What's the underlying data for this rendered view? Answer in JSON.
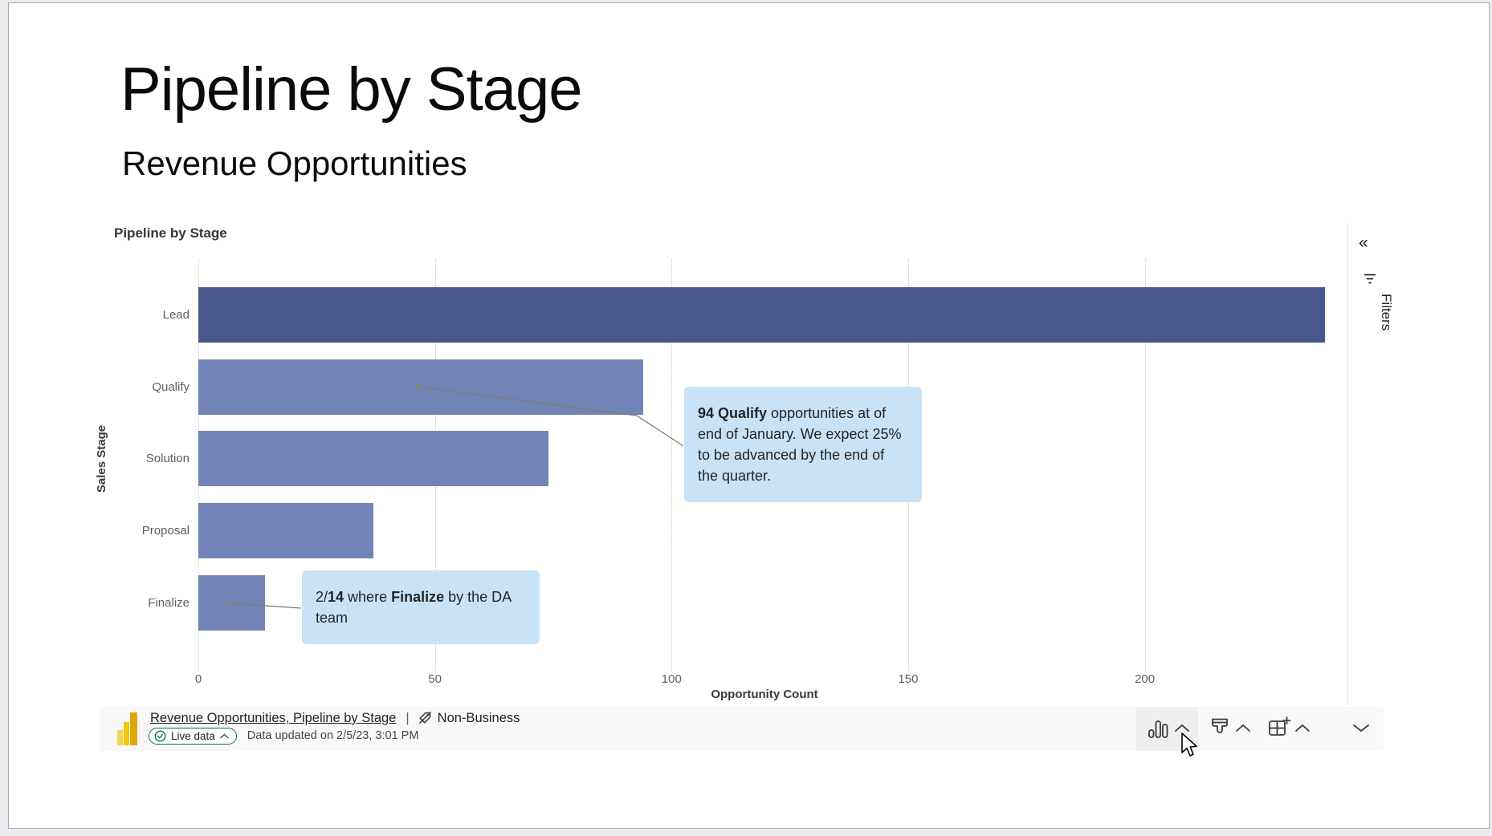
{
  "header": {
    "title": "Pipeline by Stage",
    "subtitle": "Revenue Opportunities"
  },
  "visual": {
    "title": "Pipeline by Stage"
  },
  "chart_data": {
    "type": "bar",
    "orientation": "horizontal",
    "title": "Pipeline by Stage",
    "categories": [
      "Lead",
      "Qualify",
      "Solution",
      "Proposal",
      "Finalize"
    ],
    "values": [
      238,
      94,
      74,
      37,
      14
    ],
    "xlabel": "Opportunity Count",
    "ylabel": "Sales Stage",
    "xticks": [
      0,
      50,
      100,
      150,
      200
    ],
    "xlim": [
      0,
      242
    ],
    "grid": "vertical-dotted",
    "bar_colors": [
      "#47598B",
      "#7084B6",
      "#7084B6",
      "#7084B6",
      "#7084B6"
    ],
    "annotation_fill": "#C8E3F8"
  },
  "annotations": [
    {
      "id": "qualify",
      "segments": [
        {
          "t": "94 Qualify",
          "b": true
        },
        {
          "t": " opportunities at of end of January. We expect 25% to be advanced by the end of the quarter.",
          "b": false
        }
      ]
    },
    {
      "id": "finalize",
      "segments": [
        {
          "t": "2/",
          "b": false
        },
        {
          "t": "14",
          "b": true
        },
        {
          "t": " where ",
          "b": false
        },
        {
          "t": "Finalize",
          "b": true
        },
        {
          "t": " by the DA team",
          "b": false
        }
      ]
    }
  ],
  "filters_pane": {
    "label": "Filters",
    "collapse_glyph": "«"
  },
  "footer": {
    "source_link": "Revenue Opportunities, Pipeline by Stage",
    "separator": "|",
    "sensitivity_label": "Non-Business",
    "live_badge": "Live data",
    "updated_text": "Data updated on 2/5/23, 3:01 PM"
  }
}
